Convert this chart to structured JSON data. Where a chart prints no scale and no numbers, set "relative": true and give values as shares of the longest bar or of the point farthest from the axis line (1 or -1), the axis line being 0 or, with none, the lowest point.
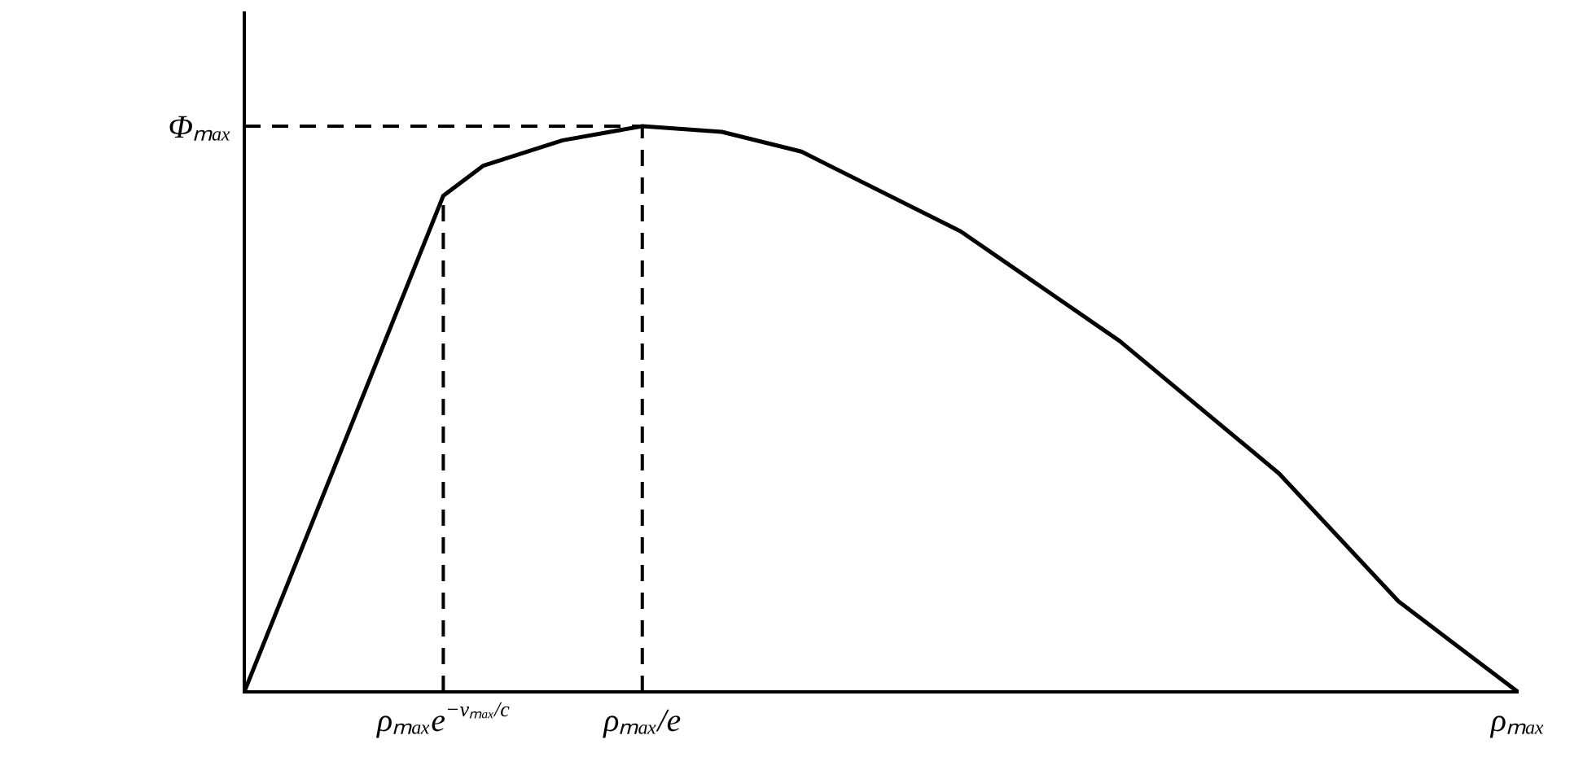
{
  "chart_data": {
    "type": "line",
    "relative": true,
    "categories": [
      null,
      null,
      null,
      null,
      null,
      "ρₘₐₓe$^{−vₘₐₓ/c}$",
      null,
      null,
      null,
      null,
      "ρₘₐₓ/e",
      null,
      null,
      null,
      null,
      null,
      null,
      null,
      null,
      null,
      null,
      null,
      null,
      null,
      null,
      null,
      null,
      null,
      null,
      null,
      null,
      null,
      "ρₘₐₓ"
    ],
    "series": [
      {
        "color": "#000000",
        "values": [
          0,
          null,
          null,
          null,
          null,
          0.877,
          0.93,
          null,
          0.975,
          null,
          1,
          null,
          0.99,
          null,
          0.955,
          null,
          null,
          null,
          0.814,
          null,
          null,
          null,
          0.62,
          null,
          null,
          null,
          0.386,
          null,
          null,
          0.16,
          null,
          null,
          0
        ]
      }
    ],
    "ref_lines": [
      {
        "axis": "y",
        "value": 1,
        "label": "Φₘₐₓ",
        "line_style": "dashed"
      },
      {
        "axis": "x",
        "value": "ρₘₐₓe$^{−vₘₐₓ/c}$",
        "line_style": "dashed"
      },
      {
        "axis": "x",
        "value": "ρₘₐₓ/e",
        "line_style": "dashed"
      }
    ],
    "marker": "none",
    "line_style": "solid",
    "grid": false,
    "legend": false
  }
}
